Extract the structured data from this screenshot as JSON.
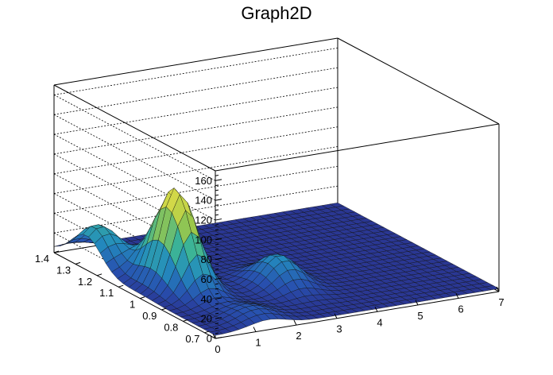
{
  "chart_data": {
    "type": "surface",
    "title": "Graph2D",
    "xlim": [
      0,
      7
    ],
    "ylim": [
      0.65,
      1.4
    ],
    "zlim": [
      0,
      170
    ],
    "x_ticks": [
      "0",
      "1",
      "2",
      "3",
      "4",
      "5",
      "6",
      "7"
    ],
    "y_ticks": [
      "0.7",
      "0.8",
      "0.9",
      "1",
      "1.1",
      "1.2",
      "1.3",
      "1.4"
    ],
    "z_ticks": [
      "0",
      "20",
      "40",
      "60",
      "80",
      "100",
      "120",
      "140",
      "160"
    ],
    "grid": true,
    "colormap": "viridis",
    "peaks": [
      {
        "x": 1.0,
        "y": 1.02,
        "z": 100
      },
      {
        "x": 0.3,
        "y": 1.25,
        "z": 40
      },
      {
        "x": 3.0,
        "y": 0.92,
        "z": 30
      },
      {
        "x": 1.3,
        "y": 0.72,
        "z": 12
      }
    ],
    "baseline": 3
  },
  "colors": {
    "frame": "#000000",
    "grid": "#000000",
    "low": "#2a2f8a",
    "high": "#f5e44a"
  }
}
